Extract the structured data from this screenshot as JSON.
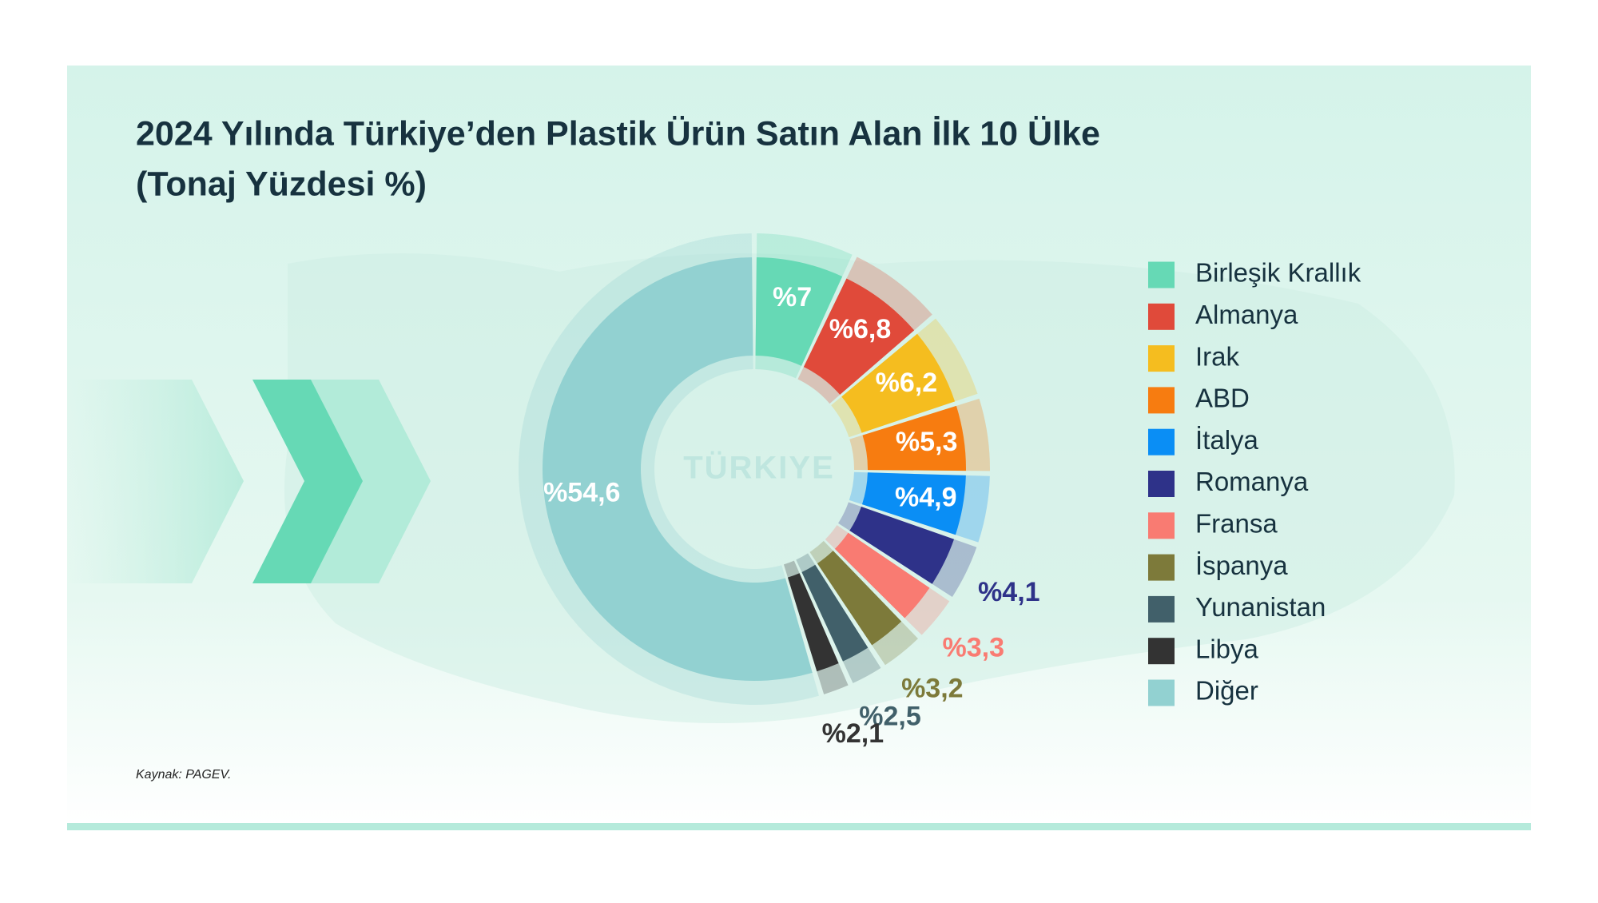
{
  "chart_data": {
    "type": "pie",
    "title": "2024 Yılında Türkiye’den Plastik Ürün Satın Alan İlk 10 Ülke",
    "subtitle": "(Tonaj Yüzdesi %)",
    "center_label": "TÜRKIYE",
    "source": "Kaynak: PAGEV.",
    "categories": [
      "Birleşik Krallık",
      "Almanya",
      "Irak",
      "ABD",
      "İtalya",
      "Romanya",
      "Fransa",
      "İspanya",
      "Yunanistan",
      "Libya",
      "Diğer"
    ],
    "values": [
      7,
      6.8,
      6.2,
      5.3,
      4.9,
      4.1,
      3.3,
      3.2,
      2.5,
      2.1,
      54.6
    ],
    "value_labels": [
      "%7",
      "%6,8",
      "%6,2",
      "%5,3",
      "%4,9",
      "%4,1",
      "%3,3",
      "%3,2",
      "%2,5",
      "%2,1",
      "%54,6"
    ],
    "colors": [
      "#66d9b5",
      "#e04a3a",
      "#f5bd1f",
      "#f77c10",
      "#0a8ef5",
      "#2e3289",
      "#f97b72",
      "#7d7a3a",
      "#41606a",
      "#333333",
      "#92d1d1"
    ],
    "legend": "right"
  }
}
